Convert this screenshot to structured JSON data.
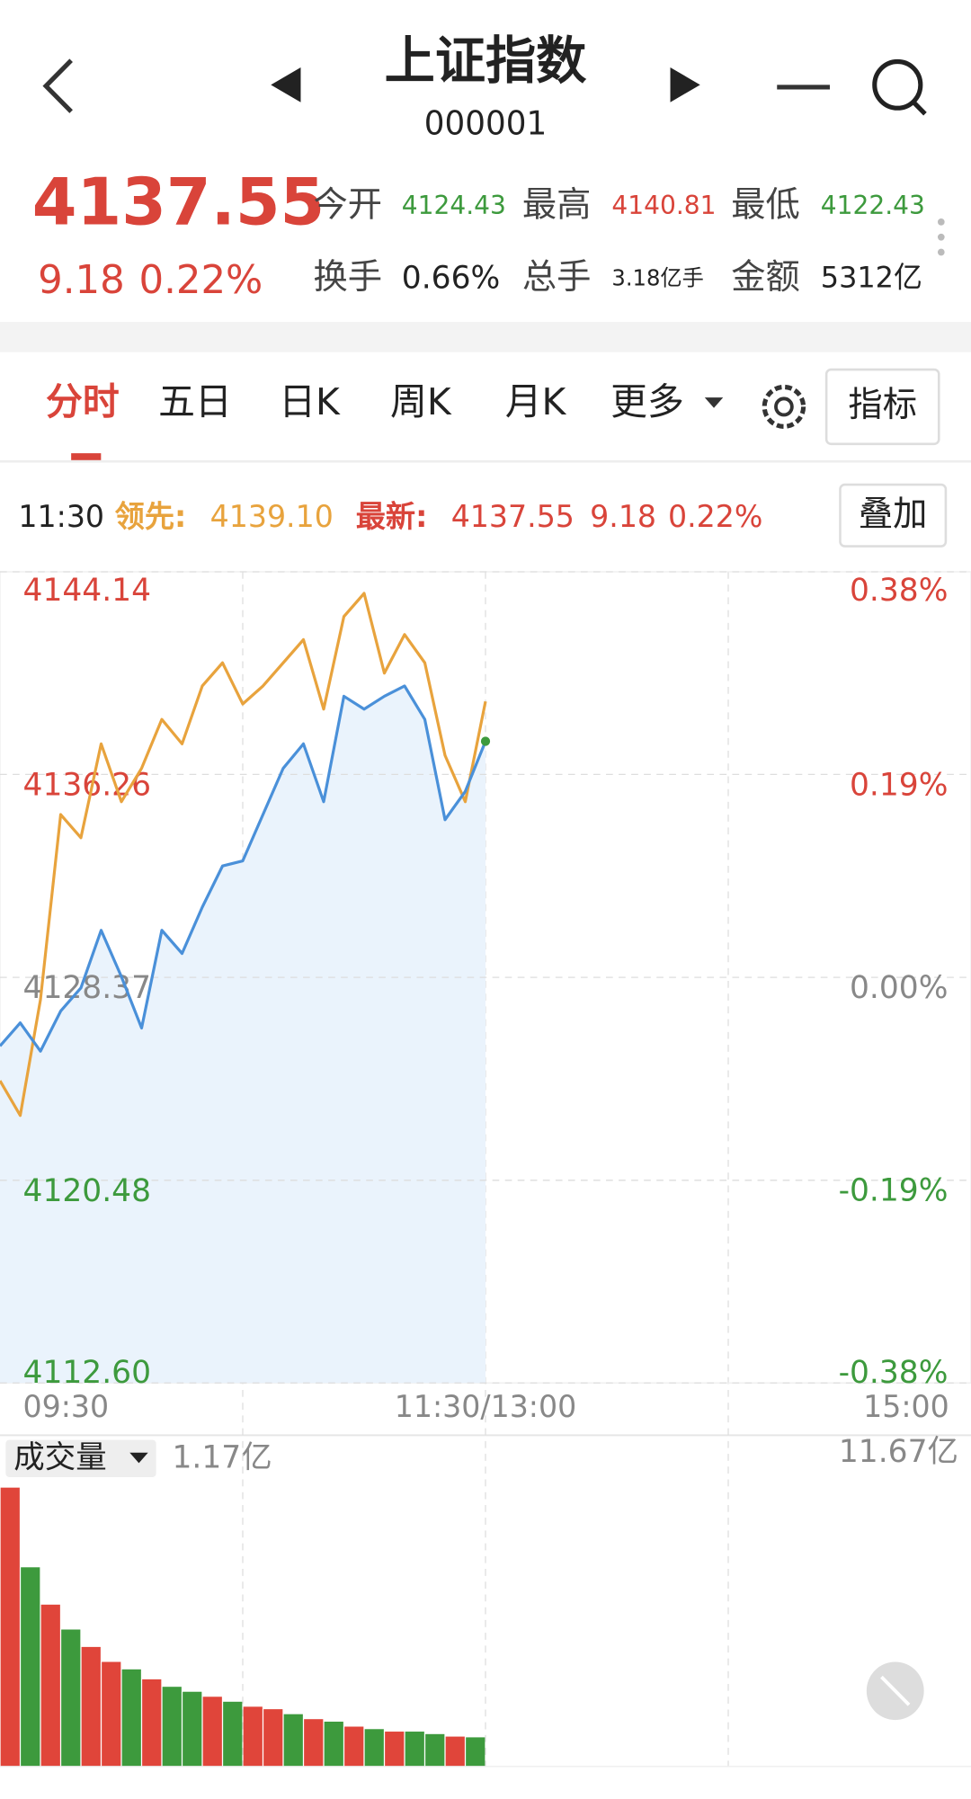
{
  "header": {
    "title": "上证指数",
    "code": "000001"
  },
  "quote": {
    "price": "4137.55",
    "change": "9.18",
    "change_pct": "0.22%",
    "stats": [
      {
        "label": "今开",
        "value": "4124.43"
      },
      {
        "label": "最高",
        "value": "4140.81"
      },
      {
        "label": "最低",
        "value": "4122.43"
      },
      {
        "label": "换手",
        "value": "0.66%"
      },
      {
        "label": "总手",
        "value": "3.18亿手"
      },
      {
        "label": "金额",
        "value": "5312亿"
      }
    ]
  },
  "tabs": [
    "分时",
    "五日",
    "日K",
    "周K",
    "月K",
    "更多"
  ],
  "buttons": {
    "indicator": "指标",
    "overlay": "叠加"
  },
  "info": {
    "time": "11:30",
    "leader_label": "领先:",
    "leader_value": "4139.10",
    "latest_label": "最新:"
  },
  "chart_data": [
    {
      "type": "line",
      "x": [
        0,
        5,
        10,
        15,
        20,
        25,
        30,
        35,
        40,
        45,
        50,
        55,
        60,
        65,
        70,
        75,
        80,
        85,
        90,
        95,
        100,
        105,
        110,
        115,
        120
      ],
      "xlim": [
        0,
        240
      ],
      "xticks": [
        {
          "value": 0,
          "label": "09:30"
        },
        {
          "value": 120,
          "label": "11:30/13:00"
        },
        {
          "value": 240,
          "label": "15:00"
        }
      ],
      "ylim": [
        4112.6,
        4144.14
      ],
      "yticks": [
        {
          "value": 4112.6,
          "label": "4112.60"
        },
        4120.48,
        4128.37,
        4136.26,
        4144.14
      ],
      "y2lim": [
        -0.38,
        0.38
      ],
      "y2ticks": [
        {
          "value": -0.38,
          "label": "-0.38%"
        },
        {
          "value": -0.19,
          "label": "-0.19%"
        },
        {
          "value": 0,
          "label": "0.00%"
        },
        {
          "value": 0.19,
          "label": "0.19%"
        },
        {
          "value": 0.38,
          "label": "0.38%"
        }
      ],
      "grid": true,
      "series": [
        {
          "color": "#4a90d9",
          "values": [
            4125.7,
            4126.6,
            4125.5,
            4127.06,
            4127.96,
            4130.2,
            4128.4,
            4126.4,
            4130.2,
            4129.3,
            4131.1,
            4132.7,
            4132.9,
            4134.7,
            4136.5,
            4137.45,
            4135.2,
            4139.3,
            4138.8,
            4139.3,
            4139.7,
            4138.4,
            4134.5,
            4135.6,
            4137.55
          ]
        },
        {
          "color": "#e8a33d",
          "values": [
            4124.35,
            4123.0,
            4127.5,
            4134.7,
            4133.8,
            4137.45,
            4135.2,
            4136.5,
            4138.4,
            4137.45,
            4139.7,
            4140.6,
            4139.0,
            4139.7,
            4140.6,
            4141.5,
            4138.8,
            4142.4,
            4143.3,
            4140.2,
            4141.7,
            4140.6,
            4137.0,
            4135.2,
            4139.1
          ]
        }
      ]
    },
    {
      "type": "bar",
      "title": "成交量",
      "latest_label": "1.17亿",
      "x": [
        0,
        5,
        10,
        15,
        20,
        25,
        30,
        35,
        40,
        45,
        50,
        55,
        60,
        65,
        70,
        75,
        80,
        85,
        90,
        95,
        100,
        105,
        110,
        115
      ],
      "xlim": [
        0,
        240
      ],
      "ylim": [
        0,
        11.67
      ],
      "yticks": [
        {
          "value": 11.67,
          "label": "11.67亿"
        }
      ],
      "values": [
        11.2,
        8.0,
        6.5,
        5.5,
        4.8,
        4.2,
        3.9,
        3.5,
        3.2,
        3.0,
        2.8,
        2.6,
        2.4,
        2.3,
        2.1,
        1.9,
        1.8,
        1.6,
        1.5,
        1.4,
        1.4,
        1.3,
        1.2,
        1.17
      ],
      "colors": [
        "#e0453a",
        "#3d9a3d",
        "#e0453a",
        "#3d9a3d",
        "#e0453a",
        "#e0453a",
        "#3d9a3d",
        "#e0453a",
        "#3d9a3d",
        "#3d9a3d",
        "#e0453a",
        "#3d9a3d",
        "#e0453a",
        "#e0453a",
        "#3d9a3d",
        "#e0453a",
        "#3d9a3d",
        "#e0453a",
        "#3d9a3d",
        "#e0453a",
        "#3d9a3d",
        "#3d9a3d",
        "#e0453a",
        "#3d9a3d"
      ]
    }
  ]
}
